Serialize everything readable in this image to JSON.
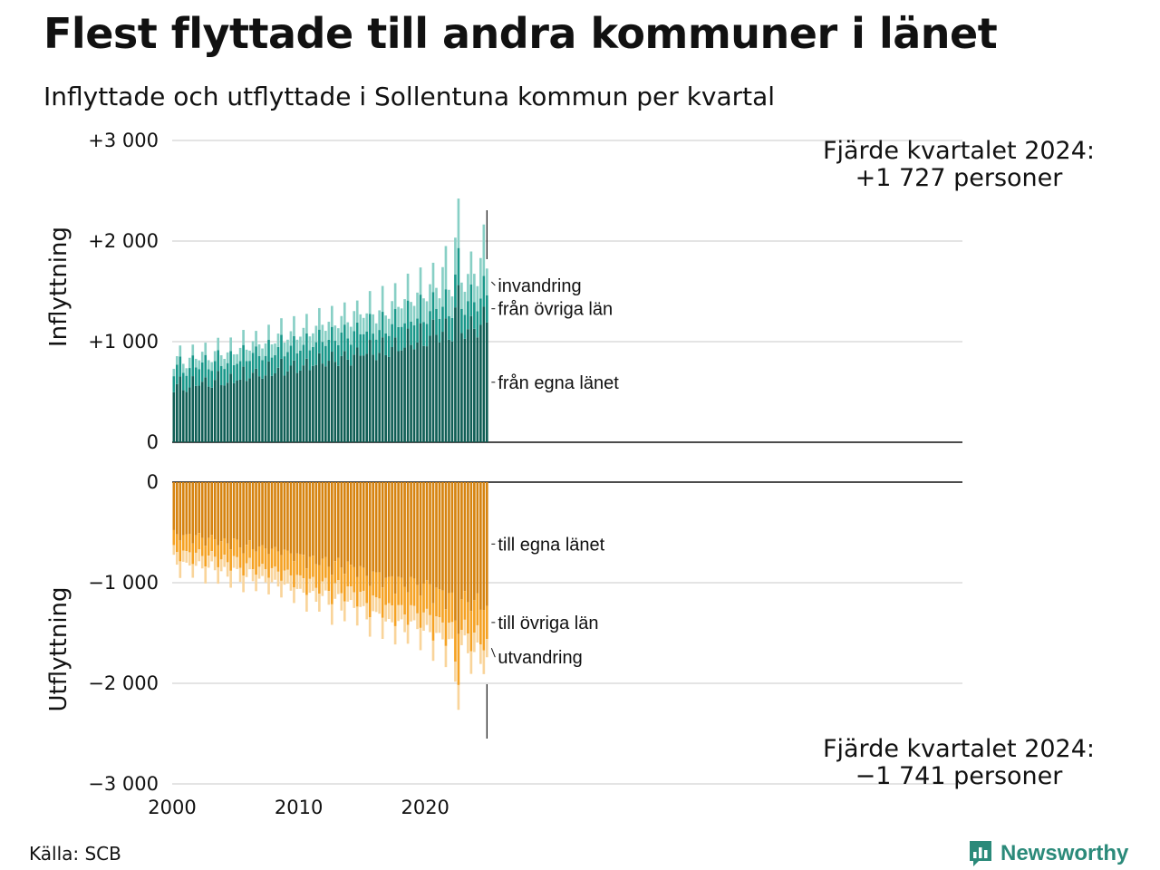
{
  "title": "Flest flyttade till andra kommuner i länet",
  "subtitle": "Inflyttade och utflyttade i Sollentuna kommun per kvartal",
  "source": "Källa: SCB",
  "logo": {
    "text": "Newsworthy",
    "icon": "bar-chart-speech-bubble-icon"
  },
  "colors": {
    "in_own_county": "#0f5e55",
    "in_other_counties": "#19988a",
    "in_immigration": "#87cfc5",
    "out_own_county": "#d6830f",
    "out_other_counties": "#f5a223",
    "out_emigration": "#f9d49a",
    "grid": "#dcdcdc",
    "axis": "#111111"
  },
  "chart_data": {
    "type": "bar",
    "stacked": true,
    "title": "Flest flyttade till andra kommuner i länet",
    "subtitle": "Inflyttade och utflyttade i Sollentuna kommun per kvartal",
    "x_start": "2000Q1",
    "x_end": "2024Q4",
    "x_ticks": [
      "2000",
      "2010",
      "2020"
    ],
    "grid": true,
    "panels": [
      {
        "ylabel": "Inflyttning",
        "ylim": [
          0,
          3000
        ],
        "yticks": [
          "0",
          "+1 000",
          "+2 000",
          "+3 000"
        ],
        "series": [
          {
            "name": "från egna länet",
            "start": 550,
            "end": 1174,
            "amplitude": 0.13,
            "noise": 0.05,
            "peaks": [
              [
                2022.5,
                1.22
              ]
            ]
          },
          {
            "name": "från övriga län",
            "start": 180,
            "end": 270,
            "amplitude": 0.15,
            "noise": 0.06,
            "peaks": [
              [
                2022.5,
                1.2
              ]
            ]
          },
          {
            "name": "invandring",
            "start": 90,
            "end": 283,
            "amplitude": 0.25,
            "noise": 0.1,
            "peaks": [
              [
                2021.5,
                1.5
              ],
              [
                2022.5,
                1.45
              ],
              [
                2024.5,
                1.55
              ]
            ]
          }
        ],
        "last_total": 1727,
        "annotation": [
          "Fjärde kvartalet 2024:",
          "+1 727 personer"
        ]
      },
      {
        "ylabel": "Utflyttning",
        "ylim": [
          -3000,
          0
        ],
        "yticks": [
          "0",
          "−1 000",
          "−2 000",
          "−3 000"
        ],
        "series": [
          {
            "name": "till egna länet",
            "start": -520,
            "end": -1220,
            "amplitude": 0.1,
            "noise": 0.05,
            "peaks": [
              [
                2022.5,
                1.15
              ]
            ]
          },
          {
            "name": "till övriga län",
            "start": -170,
            "end": -333,
            "amplitude": 0.18,
            "noise": 0.06,
            "peaks": [
              [
                2022.5,
                1.3
              ]
            ]
          },
          {
            "name": "utvandring",
            "start": -120,
            "end": -188,
            "amplitude": 0.25,
            "noise": 0.12,
            "peaks": []
          }
        ],
        "last_total": -1741,
        "annotation": [
          "Fjärde kvartalet 2024:",
          "−1 741 personer"
        ]
      }
    ]
  }
}
